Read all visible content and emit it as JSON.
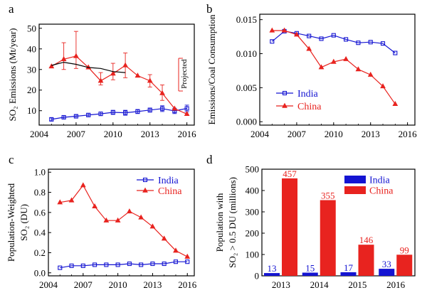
{
  "colors": {
    "india": "#1414d2",
    "china": "#e8231f",
    "black": "#000000",
    "axis": "#000000"
  },
  "chart_data": [
    {
      "id": "a",
      "panel_label": "a",
      "type": "line",
      "xlabel": "",
      "ylabel": "SO₂ Emissions (Mt/year)",
      "xlim": [
        2004,
        2016.6
      ],
      "ylim": [
        3,
        52
      ],
      "xticks": [
        2004,
        2007,
        2010,
        2013,
        2016
      ],
      "yticks": [
        10,
        20,
        30,
        40,
        50
      ],
      "annotation": "Projected",
      "series": [
        {
          "name": "India",
          "color": "#1414d2",
          "marker": "square",
          "x": [
            2005,
            2006,
            2007,
            2008,
            2009,
            2010,
            2011,
            2012,
            2013,
            2014,
            2015,
            2016
          ],
          "values": [
            5.8,
            6.8,
            7.3,
            7.9,
            8.5,
            9.2,
            9.0,
            9.6,
            10.3,
            11.0,
            9.9,
            11.1
          ],
          "err": [
            0.7,
            0.8,
            0.8,
            0.8,
            0.9,
            1.0,
            1.2,
            1.0,
            1.0,
            1.4,
            1.3,
            1.6
          ]
        },
        {
          "name": "China",
          "color": "#e8231f",
          "marker": "triangle",
          "x": [
            2005,
            2006,
            2007,
            2008,
            2009,
            2010,
            2011,
            2012,
            2013,
            2014,
            2015,
            2016
          ],
          "values": [
            31.5,
            35.0,
            36.5,
            31.0,
            24.5,
            28.0,
            32.0,
            27.0,
            24.5,
            18.5,
            11.0,
            8.4
          ],
          "err_up": [
            0,
            8.0,
            12.0,
            0,
            4.0,
            5.0,
            6.0,
            0,
            3.0,
            4.0,
            0,
            0
          ],
          "err_dn": [
            0,
            5.0,
            6.0,
            0,
            2.0,
            3.0,
            6.0,
            0,
            3.0,
            3.5,
            0,
            0
          ]
        },
        {
          "name": "",
          "color": "#000000",
          "marker": "none",
          "x": [
            2005,
            2006,
            2007,
            2008,
            2009,
            2010,
            2011
          ],
          "values": [
            32.0,
            33.5,
            32.5,
            31.0,
            30.5,
            29.0,
            28.5
          ]
        }
      ]
    },
    {
      "id": "b",
      "panel_label": "b",
      "type": "line",
      "xlabel": "",
      "ylabel": "Emissions/Coal Consumption",
      "xlim": [
        2004,
        2016.6
      ],
      "ylim": [
        -0.0005,
        0.0158
      ],
      "xticks": [
        2004,
        2007,
        2010,
        2013,
        2016
      ],
      "yticks": [
        0.0,
        0.005,
        0.01,
        0.015
      ],
      "ytick_labels": [
        "0.000",
        "0.005",
        "0.010",
        "0.015"
      ],
      "legend": [
        "India",
        "China"
      ],
      "legend_position": "lower-left",
      "series": [
        {
          "name": "India",
          "color": "#1414d2",
          "marker": "square",
          "x": [
            2005,
            2006,
            2007,
            2008,
            2009,
            2010,
            2011,
            2012,
            2013,
            2014,
            2015
          ],
          "values": [
            0.0118,
            0.0133,
            0.013,
            0.0126,
            0.0122,
            0.0127,
            0.0121,
            0.0116,
            0.0117,
            0.0115,
            0.0101
          ]
        },
        {
          "name": "China",
          "color": "#e8231f",
          "marker": "triangle",
          "x": [
            2005,
            2006,
            2007,
            2008,
            2009,
            2010,
            2011,
            2012,
            2013,
            2014,
            2015
          ],
          "values": [
            0.0134,
            0.0134,
            0.0128,
            0.0107,
            0.008,
            0.0088,
            0.0092,
            0.0077,
            0.0069,
            0.0052,
            0.0026
          ]
        }
      ]
    },
    {
      "id": "c",
      "panel_label": "c",
      "type": "line",
      "xlabel": "",
      "ylabel": "Population-Weighted SO₂ (DU)",
      "ylabel_line1": "Population-Weighted",
      "ylabel_line2": "SO₂ (DU)",
      "xlim": [
        2004,
        2016.6
      ],
      "ylim": [
        -0.03,
        1.03
      ],
      "xticks": [
        2004,
        2007,
        2010,
        2013,
        2016
      ],
      "yticks": [
        0.0,
        0.2,
        0.4,
        0.6,
        0.8,
        1.0
      ],
      "ytick_labels": [
        "0.0",
        "0.2",
        "0.4",
        "0.6",
        "0.8",
        "1.0"
      ],
      "legend": [
        "India",
        "China"
      ],
      "legend_position": "top-right",
      "series": [
        {
          "name": "India",
          "color": "#1414d2",
          "marker": "square",
          "x": [
            2005,
            2006,
            2007,
            2008,
            2009,
            2010,
            2011,
            2012,
            2013,
            2014,
            2015,
            2016
          ],
          "values": [
            0.05,
            0.07,
            0.07,
            0.08,
            0.08,
            0.08,
            0.09,
            0.08,
            0.09,
            0.09,
            0.11,
            0.11
          ]
        },
        {
          "name": "China",
          "color": "#e8231f",
          "marker": "triangle",
          "x": [
            2005,
            2006,
            2007,
            2008,
            2009,
            2010,
            2011,
            2012,
            2013,
            2014,
            2015,
            2016
          ],
          "values": [
            0.7,
            0.72,
            0.87,
            0.66,
            0.52,
            0.52,
            0.61,
            0.55,
            0.46,
            0.34,
            0.22,
            0.16
          ]
        }
      ]
    },
    {
      "id": "d",
      "panel_label": "d",
      "type": "bar",
      "xlabel": "",
      "ylabel": "Population with SO₂ > 0.5 DU (millions)",
      "ylabel_line1": "Population with",
      "ylabel_line2": "SO₂ > 0.5 DU (millions)",
      "categories": [
        "2013",
        "2014",
        "2015",
        "2016"
      ],
      "ylim": [
        0,
        500
      ],
      "yticks": [
        0,
        100,
        200,
        300,
        400,
        500
      ],
      "legend": [
        "India",
        "China"
      ],
      "legend_position": "top-right",
      "series": [
        {
          "name": "India",
          "color": "#1414d2",
          "values": [
            13,
            15,
            17,
            33
          ],
          "labels": [
            "13",
            "15",
            "17",
            "33"
          ]
        },
        {
          "name": "China",
          "color": "#e8231f",
          "values": [
            457,
            355,
            146,
            99
          ],
          "labels": [
            "457",
            "355",
            "146",
            "99"
          ]
        }
      ]
    }
  ]
}
